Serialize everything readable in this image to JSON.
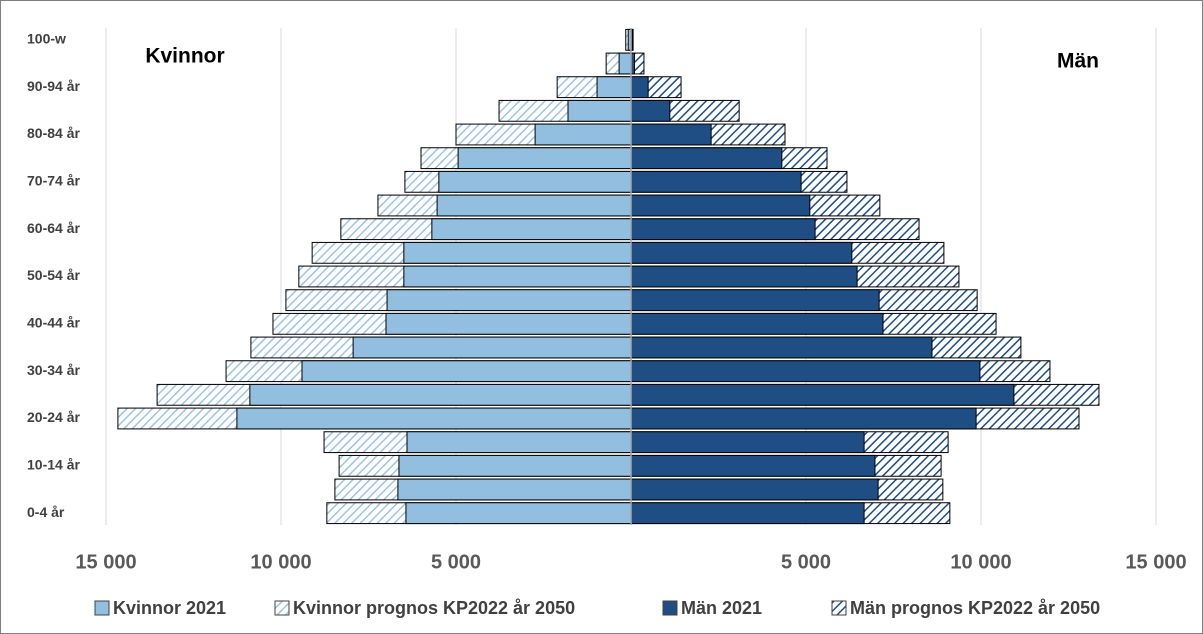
{
  "chart_data": {
    "type": "population-pyramid",
    "annotations": [
      "Kvinnor",
      "Män"
    ],
    "categories": [
      "0-4 år",
      null,
      "10-14 år",
      null,
      "20-24 år",
      null,
      "30-34 år",
      null,
      "40-44 år",
      null,
      "50-54 år",
      null,
      "60-64 år",
      null,
      "70-74 år",
      null,
      "80-84 år",
      null,
      "90-94 år",
      null,
      "100-w"
    ],
    "series": [
      {
        "name": "Kvinnor 2021",
        "color": "#92bfdf",
        "side": "left",
        "pattern": "solid",
        "values": [
          6430,
          6660,
          6630,
          6400,
          11260,
          10890,
          9400,
          7940,
          7000,
          6970,
          6490,
          6490,
          5690,
          5540,
          5490,
          4940,
          2740,
          1800,
          970,
          340,
          80
        ]
      },
      {
        "name": "Kvinnor prognos KP2022 år 2050",
        "color": "#9dc3e6",
        "side": "left",
        "pattern": "hatch",
        "values": [
          8690,
          8460,
          8340,
          8770,
          14660,
          13540,
          11570,
          10860,
          10230,
          9860,
          9490,
          9110,
          8290,
          7230,
          6460,
          6000,
          5000,
          3770,
          2110,
          710,
          150
        ]
      },
      {
        "name": "Män 2021",
        "color": "#1f4e85",
        "side": "right",
        "pattern": "solid",
        "values": [
          6660,
          7060,
          6970,
          6660,
          9860,
          10940,
          9970,
          8600,
          7200,
          7090,
          6460,
          6310,
          5260,
          5110,
          4860,
          4310,
          2290,
          1110,
          490,
          100,
          40
        ]
      },
      {
        "name": "Män prognos KP2022 år 2050",
        "color": "#1f4e85",
        "side": "right",
        "pattern": "hatch",
        "values": [
          9110,
          8910,
          8860,
          9060,
          12800,
          13370,
          11970,
          11140,
          10430,
          9890,
          9370,
          8940,
          8230,
          7110,
          6170,
          5600,
          4400,
          3090,
          1430,
          370,
          60
        ]
      }
    ],
    "xlim": [
      0,
      15000
    ],
    "xticks": [
      {
        "value": 5000,
        "label": "5 000"
      },
      {
        "value": 10000,
        "label": "10 000"
      },
      {
        "value": 15000,
        "label": "15 000"
      }
    ],
    "grid": true,
    "legend": "bottom"
  }
}
